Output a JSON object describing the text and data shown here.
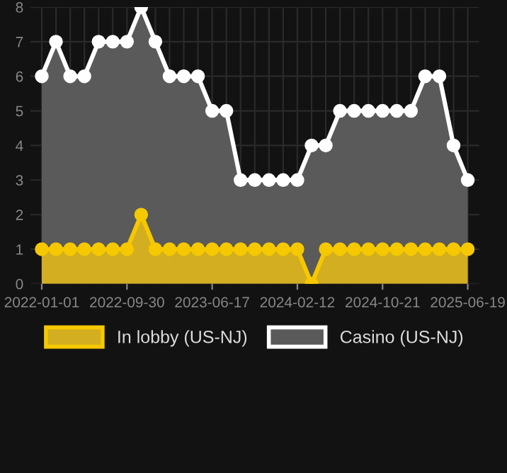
{
  "chart_data": {
    "type": "area",
    "categories": [
      "2022-01-01",
      null,
      null,
      null,
      null,
      null,
      "2022-09-30",
      null,
      null,
      null,
      null,
      null,
      "2023-06-17",
      null,
      null,
      null,
      null,
      null,
      "2024-02-12",
      null,
      null,
      null,
      null,
      null,
      "2024-10-21",
      null,
      null,
      null,
      null,
      null,
      "2025-06-19"
    ],
    "series": [
      {
        "name": "In lobby (US-NJ)",
        "color": "#f5c800",
        "values": [
          1,
          1,
          1,
          1,
          1,
          1,
          1,
          2,
          1,
          1,
          1,
          1,
          1,
          1,
          1,
          1,
          1,
          1,
          1,
          0,
          1,
          1,
          1,
          1,
          1,
          1,
          1,
          1,
          1,
          1,
          1
        ]
      },
      {
        "name": "Casino (US-NJ)",
        "color": "#ffffff",
        "values": [
          6,
          7,
          6,
          6,
          7,
          7,
          7,
          8,
          7,
          6,
          6,
          6,
          5,
          5,
          3,
          3,
          3,
          3,
          3,
          4,
          4,
          5,
          5,
          5,
          5,
          5,
          5,
          6,
          6,
          4,
          3
        ]
      }
    ],
    "ylim": [
      0,
      8
    ],
    "yticks": [
      0,
      1,
      2,
      3,
      4,
      5,
      6,
      7,
      8
    ],
    "grid": true,
    "legend": "bottom",
    "marker": "circle",
    "line_style": "solid"
  }
}
